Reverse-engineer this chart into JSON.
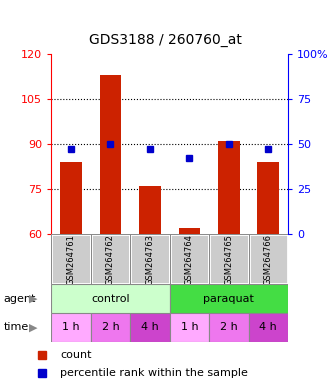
{
  "title": "GDS3188 / 260760_at",
  "samples": [
    "GSM264761",
    "GSM264762",
    "GSM264763",
    "GSM264764",
    "GSM264765",
    "GSM264766"
  ],
  "bar_values": [
    84,
    113,
    76,
    62,
    91,
    84
  ],
  "percentile_values": [
    47,
    50,
    47,
    42,
    50,
    47
  ],
  "bar_color": "#CC2200",
  "percentile_color": "#0000CC",
  "ylim_left": [
    60,
    120
  ],
  "ylim_right": [
    0,
    100
  ],
  "yticks_left": [
    60,
    75,
    90,
    105,
    120
  ],
  "yticks_right": [
    0,
    25,
    50,
    75,
    100
  ],
  "ytick_labels_right": [
    "0",
    "25",
    "50",
    "75",
    "100%"
  ],
  "time_labels": [
    "1 h",
    "2 h",
    "4 h",
    "1 h",
    "2 h",
    "4 h"
  ],
  "control_color": "#CCFFCC",
  "paraquat_color": "#44DD44",
  "time_colors": [
    "#FFAAFF",
    "#EE77EE",
    "#CC44CC",
    "#FFAAFF",
    "#EE77EE",
    "#CC44CC"
  ],
  "sample_bg_color": "#CCCCCC",
  "border_color": "#888888"
}
